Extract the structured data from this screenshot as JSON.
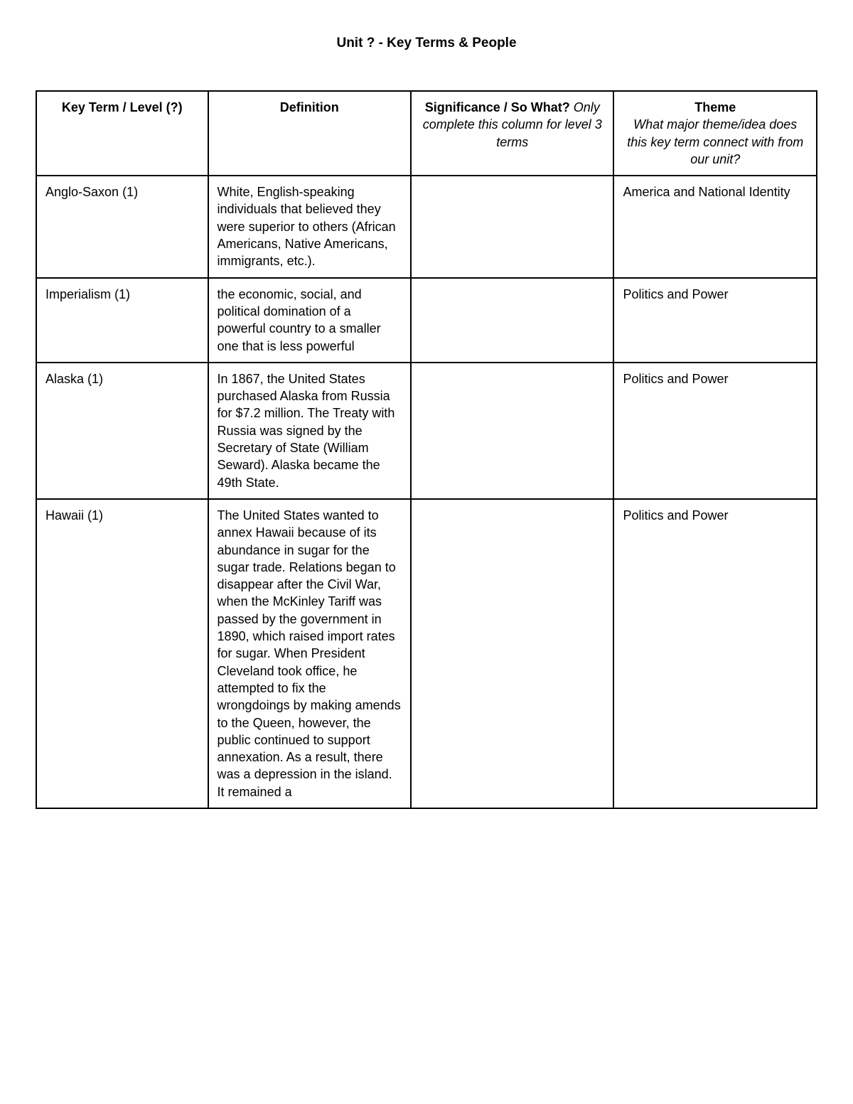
{
  "title": "Unit ? - Key Terms & People",
  "columns": {
    "term": "Key Term / Level (?)",
    "definition": "Definition",
    "significance_bold": "Significance / So What?",
    "significance_italic": " Only complete this column for level 3 terms",
    "theme_bold": "Theme",
    "theme_italic": "What major theme/idea does this key term connect with from our unit?"
  },
  "rows": [
    {
      "term": "Anglo-Saxon (1)",
      "definition": "White, English-speaking individuals that believed they were superior to others (African Americans, Native Americans, immigrants, etc.).",
      "significance": "",
      "theme": "America and National Identity"
    },
    {
      "term": "Imperialism (1)",
      "definition": "the economic, social, and political domination of a powerful country to a smaller one that is less powerful",
      "significance": "",
      "theme": "Politics and Power"
    },
    {
      "term": "Alaska (1)",
      "definition": "In 1867, the United States purchased Alaska from Russia for $7.2 million. The Treaty with Russia was signed by the Secretary of State (William Seward). Alaska became the 49th State.",
      "significance": "",
      "theme": "Politics and Power"
    },
    {
      "term": "Hawaii (1)",
      "definition": "The United States wanted to annex Hawaii because of its abundance in sugar for the sugar trade. Relations began to disappear after the Civil War, when the McKinley Tariff was passed by the government in 1890, which raised import rates for sugar. When President Cleveland took office, he attempted to fix the wrongdoings by making amends to the Queen, however, the public continued to support annexation. As a result, there was a depression in the island. It remained a",
      "significance": "",
      "theme": "Politics and Power"
    }
  ]
}
